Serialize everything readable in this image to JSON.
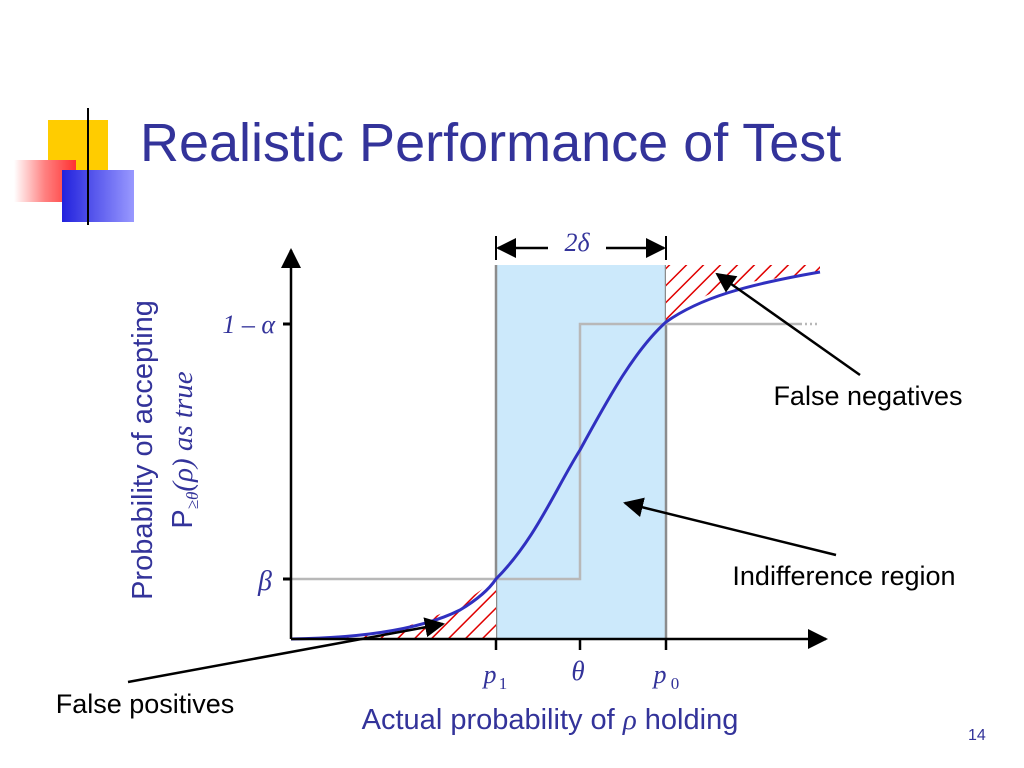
{
  "title": "Realistic Performance of Test",
  "page_number": "14",
  "colors": {
    "title": "#33339a",
    "curve": "#3030c0",
    "region_fill": "#cce9fb",
    "hatch": "#e00000",
    "ideal_line": "#b8b8b8"
  },
  "diagram": {
    "y_axis_label_line1": "Probability of accepting",
    "y_axis_label_line2_prefix": "P",
    "y_axis_label_line2_sub": "≥θ",
    "y_axis_label_line2_suffix": "(ρ) as true",
    "x_axis_label_prefix": "Actual probability of ",
    "x_axis_label_symbol": "ρ",
    "x_axis_label_suffix": " holding",
    "y_tick_top": "1 – α",
    "y_tick_bottom": "β",
    "x_tick_p1_base": "p",
    "x_tick_p1_sub": "1",
    "x_tick_theta": "θ",
    "x_tick_p0_base": "p",
    "x_tick_p0_sub": "0",
    "width_label": "2δ",
    "annotations": {
      "false_negatives": "False negatives",
      "indifference_region": "Indifference region",
      "false_positives": "False positives"
    }
  }
}
